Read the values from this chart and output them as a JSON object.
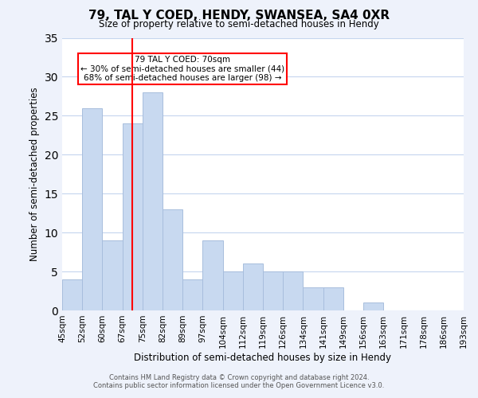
{
  "title": "79, TAL Y COED, HENDY, SWANSEA, SA4 0XR",
  "subtitle": "Size of property relative to semi-detached houses in Hendy",
  "xlabel": "Distribution of semi-detached houses by size in Hendy",
  "ylabel": "Number of semi-detached properties",
  "bar_color": "#c8d9f0",
  "bar_edge_color": "#a8bedd",
  "tick_labels": [
    "45sqm",
    "52sqm",
    "60sqm",
    "67sqm",
    "75sqm",
    "82sqm",
    "89sqm",
    "97sqm",
    "104sqm",
    "112sqm",
    "119sqm",
    "126sqm",
    "134sqm",
    "141sqm",
    "149sqm",
    "156sqm",
    "163sqm",
    "171sqm",
    "178sqm",
    "186sqm",
    "193sqm"
  ],
  "values": [
    4,
    26,
    9,
    24,
    28,
    13,
    4,
    9,
    5,
    6,
    5,
    5,
    3,
    3,
    0,
    1,
    0,
    0,
    0,
    0
  ],
  "ylim": [
    0,
    35
  ],
  "yticks": [
    0,
    5,
    10,
    15,
    20,
    25,
    30,
    35
  ],
  "property_line_x": 3.5,
  "annotation_text_line1": "79 TAL Y COED: 70sqm",
  "annotation_text_line2": "← 30% of semi-detached houses are smaller (44)",
  "annotation_text_line3": "68% of semi-detached houses are larger (98) →",
  "footer_line1": "Contains HM Land Registry data © Crown copyright and database right 2024.",
  "footer_line2": "Contains public sector information licensed under the Open Government Licence v3.0.",
  "background_color": "#eef2fb",
  "plot_background_color": "#ffffff",
  "grid_color": "#c5d5ee"
}
